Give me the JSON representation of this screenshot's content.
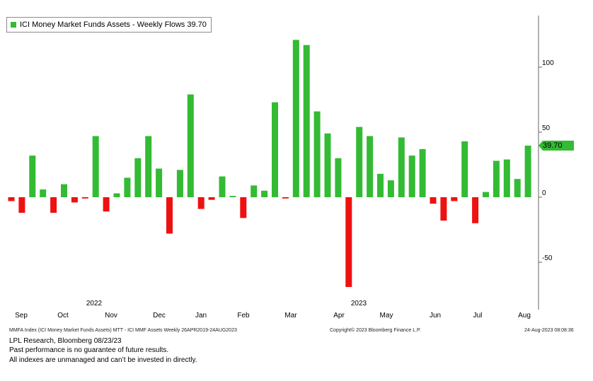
{
  "colors": {
    "positive": "#33bb33",
    "negative": "#ee1111",
    "axis": "#666666",
    "tag": "#33bb33"
  },
  "chart_data": {
    "type": "bar",
    "legend": {
      "label": "ICI Money Market Funds Assets - Weekly Flows 39.70",
      "position": "top-left"
    },
    "last_value_label": "39.70",
    "ylim": [
      -85,
      140
    ],
    "y_ticks": [
      100,
      50,
      0,
      -50
    ],
    "y_tick_labels": [
      "100",
      "50",
      "0",
      "-50"
    ],
    "x_month_labels": [
      "Sep",
      "Oct",
      "Nov",
      "Dec",
      "Jan",
      "Feb",
      "Mar",
      "Apr",
      "May",
      "Jun",
      "Jul",
      "Aug"
    ],
    "x_year_labels": [
      "2022",
      "2023"
    ],
    "grid": false,
    "values": [
      -3,
      -12,
      32,
      6,
      -12,
      10,
      -4,
      -1,
      47,
      -11,
      3,
      15,
      30,
      47,
      22,
      -28,
      21,
      79,
      -9,
      -2,
      16,
      1,
      -16,
      9,
      5,
      73,
      -1,
      121,
      117,
      66,
      49,
      30,
      -69,
      54,
      47,
      18,
      13,
      46,
      32,
      37,
      -5,
      -18,
      -3,
      43,
      -20,
      4,
      28,
      29,
      14,
      39.7
    ]
  },
  "footer": {
    "index_info": "MMFA Index (ICI Money Market Funds Assets) MTT - ICI MMF Assets  Weekly 26APR2019-24AUG2023",
    "copyright": "Copyright© 2023 Bloomberg Finance L.P.",
    "timestamp": "24-Aug-2023 08:08:36",
    "source": "LPL Research, Bloomberg 08/23/23",
    "disclaimer1": "Past performance is no guarantee of future results.",
    "disclaimer2": "All indexes are unmanaged and can’t be invested in directly."
  }
}
